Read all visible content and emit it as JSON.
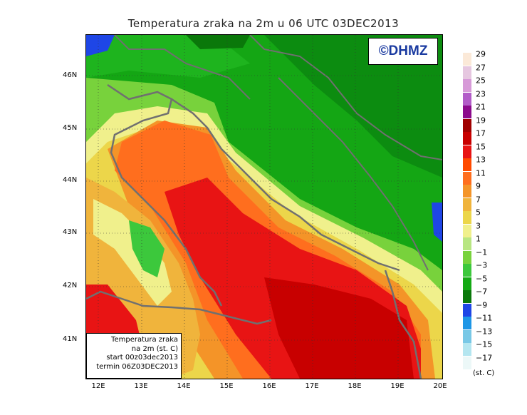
{
  "title": "Temperatura zraka na 2m u 06 UTC 03DEC2013",
  "logo": "©DHMZ",
  "infobox": {
    "line1": "Temperatura zraka",
    "line2": "na 2m (st. C)",
    "line3": "start 00z03dec2013",
    "line4": "termin 06Z03DEC2013"
  },
  "lat_labels": [
    "46N",
    "45N",
    "44N",
    "43N",
    "42N",
    "41N"
  ],
  "lon_labels": [
    "12E",
    "13E",
    "14E",
    "15E",
    "16E",
    "17E",
    "18E",
    "19E",
    "20E"
  ],
  "legend": {
    "unit": "(st. C)",
    "labels": [
      "29",
      "27",
      "25",
      "23",
      "21",
      "19",
      "17",
      "15",
      "13",
      "11",
      "9",
      "7",
      "5",
      "3",
      "1",
      "−1",
      "−3",
      "−5",
      "−7",
      "−9",
      "−11",
      "−13",
      "−15",
      "−17"
    ],
    "colors": [
      "#fbe9d8",
      "#e6c7e0",
      "#d79ad8",
      "#b25cc8",
      "#8c0a8c",
      "#a00000",
      "#c80000",
      "#e81414",
      "#ff4a00",
      "#ff6e1e",
      "#f49428",
      "#f0b43c",
      "#ecd64a",
      "#f0f08c",
      "#b8e682",
      "#78d23c",
      "#3cc83c",
      "#14aa14",
      "#0a780a",
      "#1e46e6",
      "#1e96e6",
      "#78c8e6",
      "#b4e6f0",
      "#ecf8f8"
    ]
  }
}
